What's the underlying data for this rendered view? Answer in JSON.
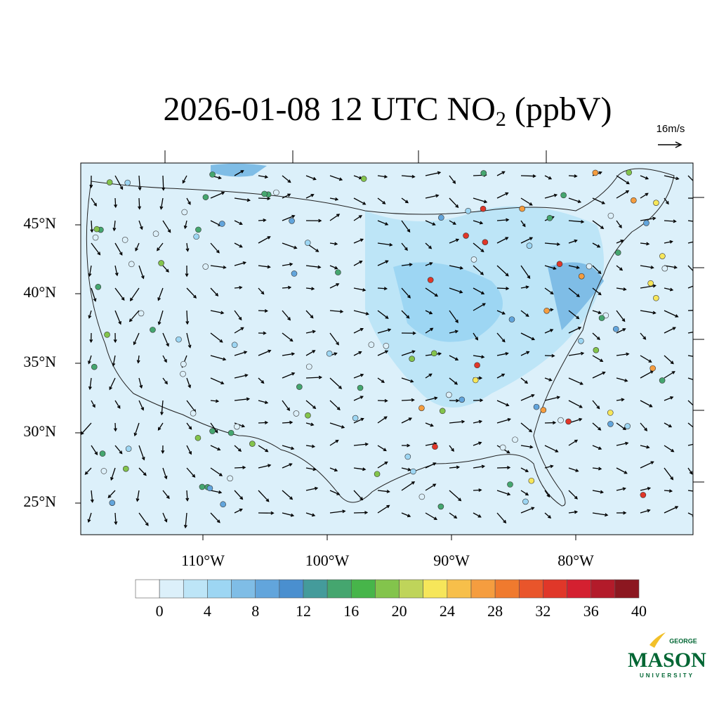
{
  "title": {
    "main": "2026-01-08 12 UTC NO",
    "subscript": "2",
    "rest": " (ppbV)"
  },
  "wind_reference": "16m/s",
  "map": {
    "lat_labels": [
      "45°N",
      "40°N",
      "35°N",
      "30°N",
      "25°N"
    ],
    "lon_labels": [
      "110°W",
      "100°W",
      "90°W",
      "80°W"
    ]
  },
  "colorbar": {
    "colors": [
      "#ffffff",
      "#dcf0fa",
      "#bde5f7",
      "#9dd6f3",
      "#7fbde6",
      "#62a5dc",
      "#4a8fcf",
      "#449b9b",
      "#45a66f",
      "#47b54a",
      "#83c44c",
      "#bfd45a",
      "#f6e65a",
      "#f7bf4a",
      "#f59d3f",
      "#f07a2e",
      "#e9552b",
      "#e03729",
      "#d42030",
      "#b31b2a",
      "#8c1720"
    ],
    "ticks": [
      0,
      4,
      8,
      12,
      16,
      20,
      24,
      28,
      32,
      36,
      40
    ]
  },
  "logo": {
    "top": "GEORGE",
    "name": "MASON",
    "bottom": "UNIVERSITY"
  }
}
